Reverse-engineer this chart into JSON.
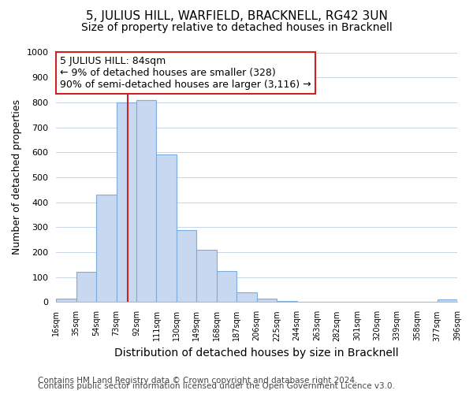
{
  "title": "5, JULIUS HILL, WARFIELD, BRACKNELL, RG42 3UN",
  "subtitle": "Size of property relative to detached houses in Bracknell",
  "xlabel": "Distribution of detached houses by size in Bracknell",
  "ylabel": "Number of detached properties",
  "bar_labels": [
    "16sqm",
    "35sqm",
    "54sqm",
    "73sqm",
    "92sqm",
    "111sqm",
    "130sqm",
    "149sqm",
    "168sqm",
    "187sqm",
    "206sqm",
    "225sqm",
    "244sqm",
    "263sqm",
    "282sqm",
    "301sqm",
    "320sqm",
    "339sqm",
    "358sqm",
    "377sqm",
    "396sqm"
  ],
  "bar_heights": [
    15,
    120,
    430,
    800,
    810,
    590,
    290,
    210,
    125,
    40,
    15,
    5,
    2,
    1,
    1,
    1,
    0,
    0,
    0,
    10
  ],
  "bar_color": "#c8d8f0",
  "bar_edge_color": "#7aaddd",
  "annotation_line1": "5 JULIUS HILL: 84sqm",
  "annotation_line2": "← 9% of detached houses are smaller (328)",
  "annotation_line3": "90% of semi-detached houses are larger (3,116) →",
  "annotation_box_color": "#ffffff",
  "annotation_box_edge_color": "#cc2222",
  "red_line_x": 4.58,
  "ylim": [
    0,
    1000
  ],
  "yticks": [
    0,
    100,
    200,
    300,
    400,
    500,
    600,
    700,
    800,
    900,
    1000
  ],
  "grid_color": "#c8d4e8",
  "background_color": "#ffffff",
  "footer_line1": "Contains HM Land Registry data © Crown copyright and database right 2024.",
  "footer_line2": "Contains public sector information licensed under the Open Government Licence v3.0.",
  "title_fontsize": 11,
  "subtitle_fontsize": 10,
  "xlabel_fontsize": 10,
  "ylabel_fontsize": 9,
  "annotation_fontsize": 9,
  "footer_fontsize": 7.5
}
